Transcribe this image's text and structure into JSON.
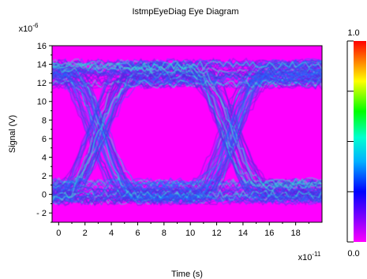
{
  "chart_data": {
    "type": "heatmap",
    "title": "IstmpEyeDiag Eye Diagram",
    "xlabel": "Time (s)",
    "ylabel": "Signal (V)",
    "x_multiplier": "x10",
    "x_exponent": "-11",
    "y_multiplier": "x10",
    "y_exponent": "-6",
    "xlim": [
      -0.5,
      20
    ],
    "ylim": [
      -3,
      16
    ],
    "x_ticks": [
      "0",
      "2",
      "4",
      "6",
      "8",
      "10",
      "12",
      "14",
      "16",
      "18"
    ],
    "y_ticks": [
      "16",
      "14",
      "12",
      "10",
      "8",
      "6",
      "4",
      "2",
      "0",
      "- 2"
    ],
    "x_tick_values": [
      0,
      2,
      4,
      6,
      8,
      10,
      12,
      14,
      16,
      18
    ],
    "y_tick_values": [
      16,
      14,
      12,
      10,
      8,
      6,
      4,
      2,
      0,
      -2
    ],
    "colorbar": {
      "min": 0.0,
      "max": 1.0,
      "min_label": "0.0",
      "max_label": "1.0"
    },
    "eye": {
      "high_level": 13,
      "low_level": 0.3,
      "crossings": [
        3,
        13
      ],
      "period": 10
    },
    "grid": false,
    "colors": {
      "background": "#ff00ff",
      "low_density": "#4b2be0",
      "mid_density": "#1f6bff",
      "high_density": "#35e0d0"
    }
  }
}
